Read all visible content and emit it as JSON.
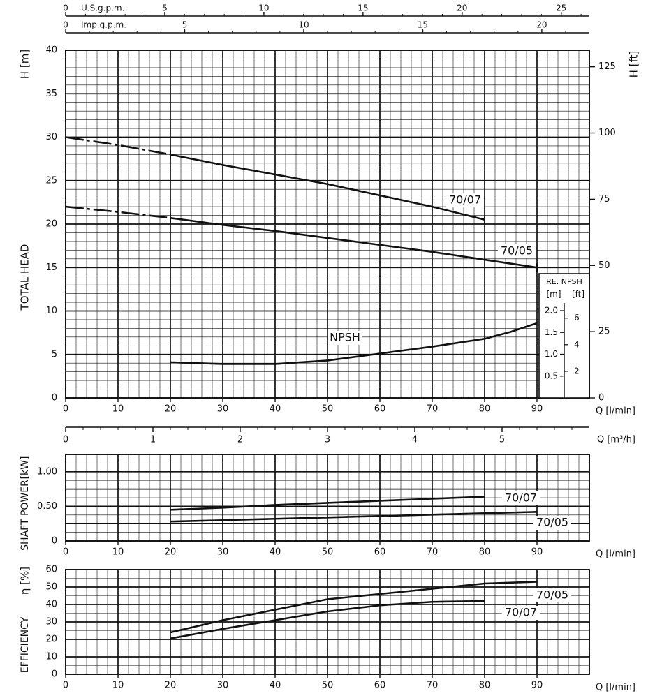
{
  "chart_data": [
    {
      "type": "line",
      "xlabel": "Q [l/min]",
      "ylabel": "TOTAL HEAD",
      "y_unit": "H [m]",
      "y2_unit": "H [ft]",
      "xlim": [
        0,
        100
      ],
      "ylim": [
        0,
        40
      ],
      "x_ticks": [
        "0",
        "10",
        "20",
        "30",
        "40",
        "50",
        "60",
        "70",
        "80",
        "90"
      ],
      "y_ticks": [
        "0",
        "5",
        "10",
        "15",
        "20",
        "25",
        "30",
        "35",
        "40"
      ],
      "y2_ticks": [
        "0",
        "25",
        "50",
        "75",
        "100",
        "125"
      ],
      "top_axes": [
        {
          "label": "U.S.g.p.m.",
          "ticks": [
            "0",
            "5",
            "10",
            "15",
            "20",
            "25"
          ]
        },
        {
          "label": "Imp.g.p.m.",
          "ticks": [
            "0",
            "5",
            "10",
            "15",
            "20"
          ]
        }
      ],
      "m3h_axis": {
        "label": "Q [m³/h]",
        "ticks": [
          "0",
          "1",
          "2",
          "3",
          "4",
          "5"
        ]
      },
      "series": [
        {
          "name": "70/07",
          "dashed_x": [
            0,
            20
          ],
          "x": [
            0,
            10,
            20,
            30,
            40,
            50,
            60,
            70,
            80
          ],
          "y": [
            30,
            29.1,
            28,
            26.8,
            25.7,
            24.6,
            23.3,
            22,
            20.5
          ]
        },
        {
          "name": "70/05",
          "dashed_x": [
            0,
            20
          ],
          "x": [
            0,
            10,
            20,
            30,
            40,
            50,
            60,
            70,
            80,
            90
          ],
          "y": [
            22,
            21.4,
            20.7,
            19.9,
            19.2,
            18.4,
            17.6,
            16.8,
            15.9,
            15
          ]
        },
        {
          "name": "NPSH",
          "x": [
            20,
            30,
            40,
            50,
            60,
            70,
            80,
            85,
            90
          ],
          "y": [
            4.1,
            3.9,
            3.9,
            4.3,
            5.1,
            5.9,
            6.8,
            7.6,
            8.6
          ]
        }
      ],
      "npsh_scale": {
        "title": "RE. NPSH",
        "units": [
          "[m]",
          "[ft]"
        ],
        "m_ticks": [
          "0.5",
          "1.0",
          "1.5",
          "2.0"
        ],
        "ft_ticks": [
          "2",
          "4",
          "6"
        ]
      }
    },
    {
      "type": "line",
      "ylabel": "SHAFT POWER",
      "y_unit": "[kW]",
      "xlabel": "Q [l/min]",
      "xlim": [
        0,
        100
      ],
      "ylim": [
        0,
        1.25
      ],
      "x_ticks": [
        "0",
        "10",
        "20",
        "30",
        "40",
        "50",
        "60",
        "70",
        "80",
        "90"
      ],
      "y_ticks": [
        "0",
        "0.50",
        "1.00"
      ],
      "series": [
        {
          "name": "70/07",
          "x": [
            20,
            30,
            40,
            50,
            60,
            70,
            80
          ],
          "y": [
            0.45,
            0.48,
            0.52,
            0.55,
            0.58,
            0.61,
            0.64
          ]
        },
        {
          "name": "70/05",
          "x": [
            20,
            30,
            40,
            50,
            60,
            70,
            80,
            90
          ],
          "y": [
            0.28,
            0.3,
            0.32,
            0.34,
            0.36,
            0.38,
            0.4,
            0.42
          ]
        }
      ]
    },
    {
      "type": "line",
      "ylabel": "EFFICIENCY",
      "y_unit": "η [%]",
      "xlabel": "Q [l/min]",
      "xlim": [
        0,
        100
      ],
      "ylim": [
        0,
        60
      ],
      "x_ticks": [
        "0",
        "10",
        "20",
        "30",
        "40",
        "50",
        "60",
        "70",
        "80",
        "90"
      ],
      "y_ticks": [
        "0",
        "10",
        "20",
        "30",
        "40",
        "50",
        "60"
      ],
      "series": [
        {
          "name": "70/05",
          "x": [
            20,
            30,
            40,
            50,
            60,
            70,
            80,
            90
          ],
          "y": [
            24,
            31,
            37,
            43,
            46,
            49,
            52,
            53
          ]
        },
        {
          "name": "70/07",
          "x": [
            20,
            30,
            40,
            50,
            60,
            70,
            80
          ],
          "y": [
            20.5,
            26,
            31,
            36,
            39.5,
            41.5,
            42
          ]
        }
      ]
    }
  ]
}
